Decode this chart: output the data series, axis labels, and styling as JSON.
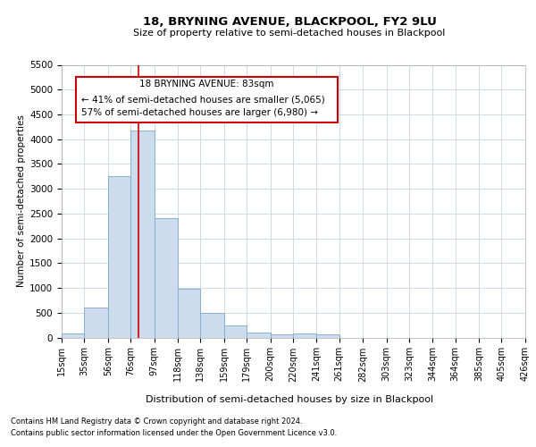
{
  "title": "18, BRYNING AVENUE, BLACKPOOL, FY2 9LU",
  "subtitle": "Size of property relative to semi-detached houses in Blackpool",
  "xlabel": "Distribution of semi-detached houses by size in Blackpool",
  "ylabel": "Number of semi-detached properties",
  "footnote1": "Contains HM Land Registry data © Crown copyright and database right 2024.",
  "footnote2": "Contains public sector information licensed under the Open Government Licence v3.0.",
  "annotation_title": "18 BRYNING AVENUE: 83sqm",
  "annotation_line1": "← 41% of semi-detached houses are smaller (5,065)",
  "annotation_line2": "57% of semi-detached houses are larger (6,980) →",
  "property_size": 83,
  "bar_color": "#ccdcec",
  "bar_edge_color": "#7aaac8",
  "red_line_color": "#cc0000",
  "annotation_box_color": "#cc0000",
  "grid_color": "#d0d8e4",
  "background_color": "#ffffff",
  "bins": [
    15,
    35,
    56,
    76,
    97,
    118,
    138,
    159,
    179,
    200,
    220,
    241,
    261,
    282,
    303,
    323,
    344,
    364,
    385,
    405,
    426
  ],
  "counts": [
    75,
    600,
    3250,
    4175,
    2400,
    975,
    500,
    250,
    100,
    60,
    75,
    65,
    0,
    0,
    0,
    0,
    0,
    0,
    0,
    0
  ],
  "ylim": [
    0,
    5500
  ],
  "yticks": [
    0,
    500,
    1000,
    1500,
    2000,
    2500,
    3000,
    3500,
    4000,
    4500,
    5000,
    5500
  ]
}
